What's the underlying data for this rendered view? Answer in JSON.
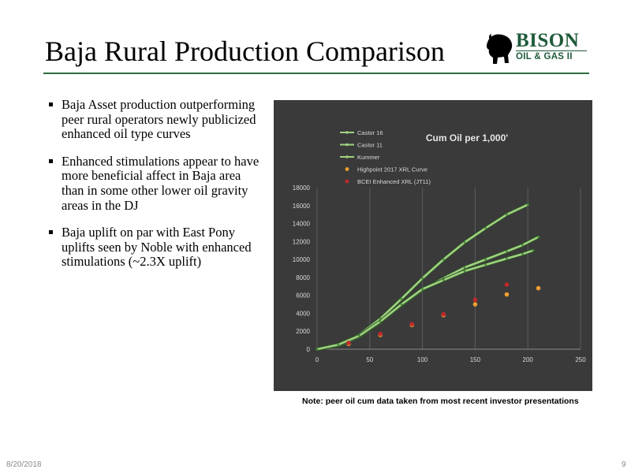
{
  "slide": {
    "title": "Baja Rural Production Comparison",
    "date": "8/20/2018",
    "page_number": "9",
    "note": "Note: peer oil cum data taken from most recent investor presentations"
  },
  "logo": {
    "name": "BISON",
    "subtitle": "OIL & GAS II",
    "icon": "bison-icon",
    "color": "#1f5a3a"
  },
  "bullets": [
    "Baja Asset production outperforming peer rural operators newly publicized enhanced oil type curves",
    "Enhanced stimulations appear to have more beneficial affect in Baja area than in some other lower oil gravity areas in the DJ",
    "Baja uplift on par with East Pony uplifts seen by Noble with enhanced stimulations (~2.3X uplift)"
  ],
  "chart_data": {
    "type": "line",
    "title": "Cum Oil per 1,000'",
    "background": "#3a3a3a",
    "xlim": [
      0,
      250
    ],
    "ylim": [
      0,
      18000
    ],
    "x_ticks": [
      "0",
      "50",
      "100",
      "150",
      "200",
      "250"
    ],
    "y_ticks": [
      "0",
      "2000",
      "4000",
      "6000",
      "8000",
      "10000",
      "12000",
      "14000",
      "16000",
      "18000"
    ],
    "grid": "vertical",
    "legend_position": "top-left",
    "series": [
      {
        "name": "Castor 16",
        "kind": "line",
        "color": "#9fd27f",
        "points": [
          [
            0,
            0
          ],
          [
            20,
            500
          ],
          [
            40,
            1600
          ],
          [
            60,
            3400
          ],
          [
            80,
            5600
          ],
          [
            100,
            7900
          ],
          [
            120,
            10000
          ],
          [
            140,
            11900
          ],
          [
            160,
            13500
          ],
          [
            180,
            15000
          ],
          [
            200,
            16100
          ]
        ]
      },
      {
        "name": "Castor 11",
        "kind": "line",
        "color": "#9fd27f",
        "points": [
          [
            0,
            0
          ],
          [
            20,
            400
          ],
          [
            40,
            1400
          ],
          [
            60,
            3000
          ],
          [
            80,
            4900
          ],
          [
            100,
            6600
          ],
          [
            120,
            7900
          ],
          [
            140,
            9100
          ],
          [
            160,
            10000
          ],
          [
            180,
            10900
          ],
          [
            195,
            11600
          ],
          [
            210,
            12500
          ]
        ]
      },
      {
        "name": "Kummer",
        "kind": "line",
        "color": "#9fd27f",
        "points": [
          [
            0,
            0
          ],
          [
            20,
            500
          ],
          [
            40,
            1500
          ],
          [
            60,
            3100
          ],
          [
            80,
            5000
          ],
          [
            100,
            6700
          ],
          [
            120,
            7700
          ],
          [
            140,
            8700
          ],
          [
            160,
            9400
          ],
          [
            180,
            10100
          ],
          [
            195,
            10600
          ],
          [
            205,
            11000
          ]
        ]
      },
      {
        "name": "Highpoint 2017 XRL Curve",
        "kind": "scatter",
        "color": "#f0a030",
        "points": [
          [
            30,
            600
          ],
          [
            60,
            1600
          ],
          [
            90,
            2700
          ],
          [
            120,
            3800
          ],
          [
            150,
            5000
          ],
          [
            180,
            6100
          ],
          [
            210,
            6800
          ]
        ]
      },
      {
        "name": "BCEI Enhanced XRL (JT11)",
        "kind": "scatter",
        "color": "#c0282a",
        "points": [
          [
            30,
            700
          ],
          [
            60,
            1700
          ],
          [
            90,
            2800
          ],
          [
            120,
            3900
          ],
          [
            150,
            5500
          ],
          [
            180,
            7200
          ]
        ]
      }
    ]
  }
}
